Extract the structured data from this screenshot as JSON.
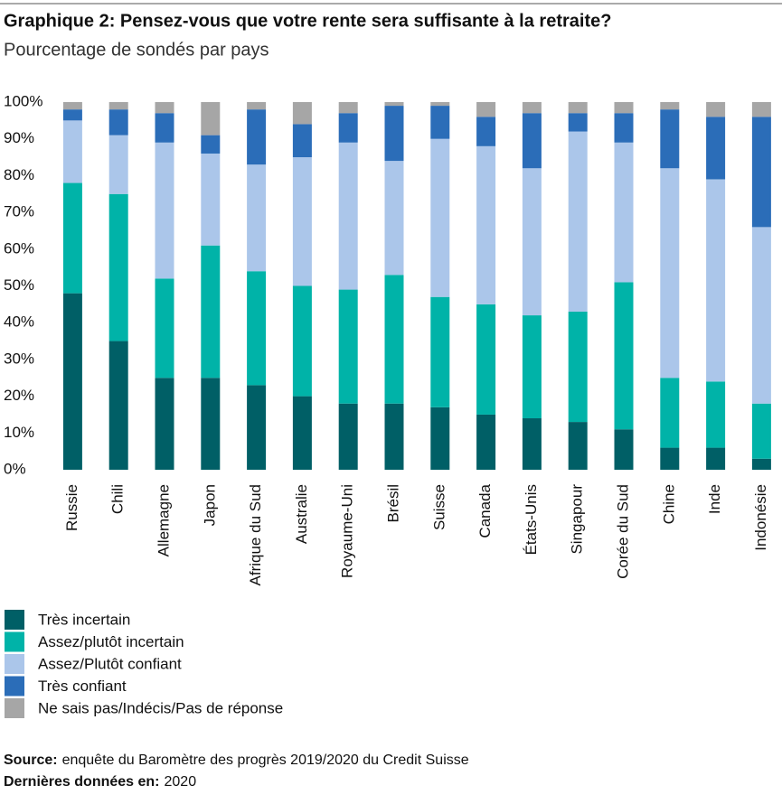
{
  "chart_data": {
    "type": "stacked_bar",
    "title": "Graphique 2: Pensez-vous que votre rente sera suffisante à la retraite?",
    "subtitle": "Pourcentage de sondés par pays",
    "categories": [
      "Russie",
      "Chili",
      "Allemagne",
      "Japon",
      "Afrique du Sud",
      "Australie",
      "Royaume-Uni",
      "Brésil",
      "Suisse",
      "Canada",
      "États-Unis",
      "Singapour",
      "Corée du Sud",
      "Chine",
      "Inde",
      "Indonésie"
    ],
    "series": [
      {
        "name": "Très incertain",
        "color": "#005f66",
        "values": [
          48,
          35,
          25,
          25,
          23,
          20,
          18,
          18,
          17,
          15,
          14,
          13,
          11,
          6,
          6,
          3
        ]
      },
      {
        "name": "Assez/plutôt incertain",
        "color": "#00b3a8",
        "values": [
          30,
          40,
          27,
          36,
          31,
          30,
          31,
          35,
          30,
          30,
          28,
          30,
          40,
          19,
          18,
          15
        ]
      },
      {
        "name": "Assez/Plutôt confiant",
        "color": "#abc6ea",
        "values": [
          17,
          16,
          37,
          25,
          29,
          35,
          40,
          31,
          43,
          43,
          40,
          49,
          38,
          57,
          55,
          48
        ]
      },
      {
        "name": "Très confiant",
        "color": "#2b6db8",
        "values": [
          3,
          7,
          8,
          5,
          15,
          9,
          8,
          15,
          9,
          8,
          15,
          5,
          8,
          16,
          17,
          30
        ]
      },
      {
        "name": "Ne sais pas/Indécis/Pas de réponse",
        "color": "#a6a6a6",
        "values": [
          2,
          2,
          3,
          9,
          2,
          6,
          3,
          1,
          1,
          4,
          3,
          3,
          3,
          2,
          4,
          4
        ]
      }
    ],
    "ylim": [
      0,
      100
    ],
    "yticks": [
      {
        "value": 0,
        "label": "0%"
      },
      {
        "value": 10,
        "label": "10%"
      },
      {
        "value": 20,
        "label": "20%"
      },
      {
        "value": 30,
        "label": "30%"
      },
      {
        "value": 40,
        "label": "40%"
      },
      {
        "value": 50,
        "label": "50%"
      },
      {
        "value": 60,
        "label": "60%"
      },
      {
        "value": 70,
        "label": "70%"
      },
      {
        "value": 80,
        "label": "80%"
      },
      {
        "value": 90,
        "label": "90%"
      },
      {
        "value": 100,
        "label": "100%"
      }
    ],
    "grid": false,
    "source": {
      "label": "Source:",
      "text": "enquête du Baromètre des progrès 2019/2020 du Credit Suisse"
    },
    "latest": {
      "label": "Dernières données en:",
      "text": "2020"
    }
  }
}
